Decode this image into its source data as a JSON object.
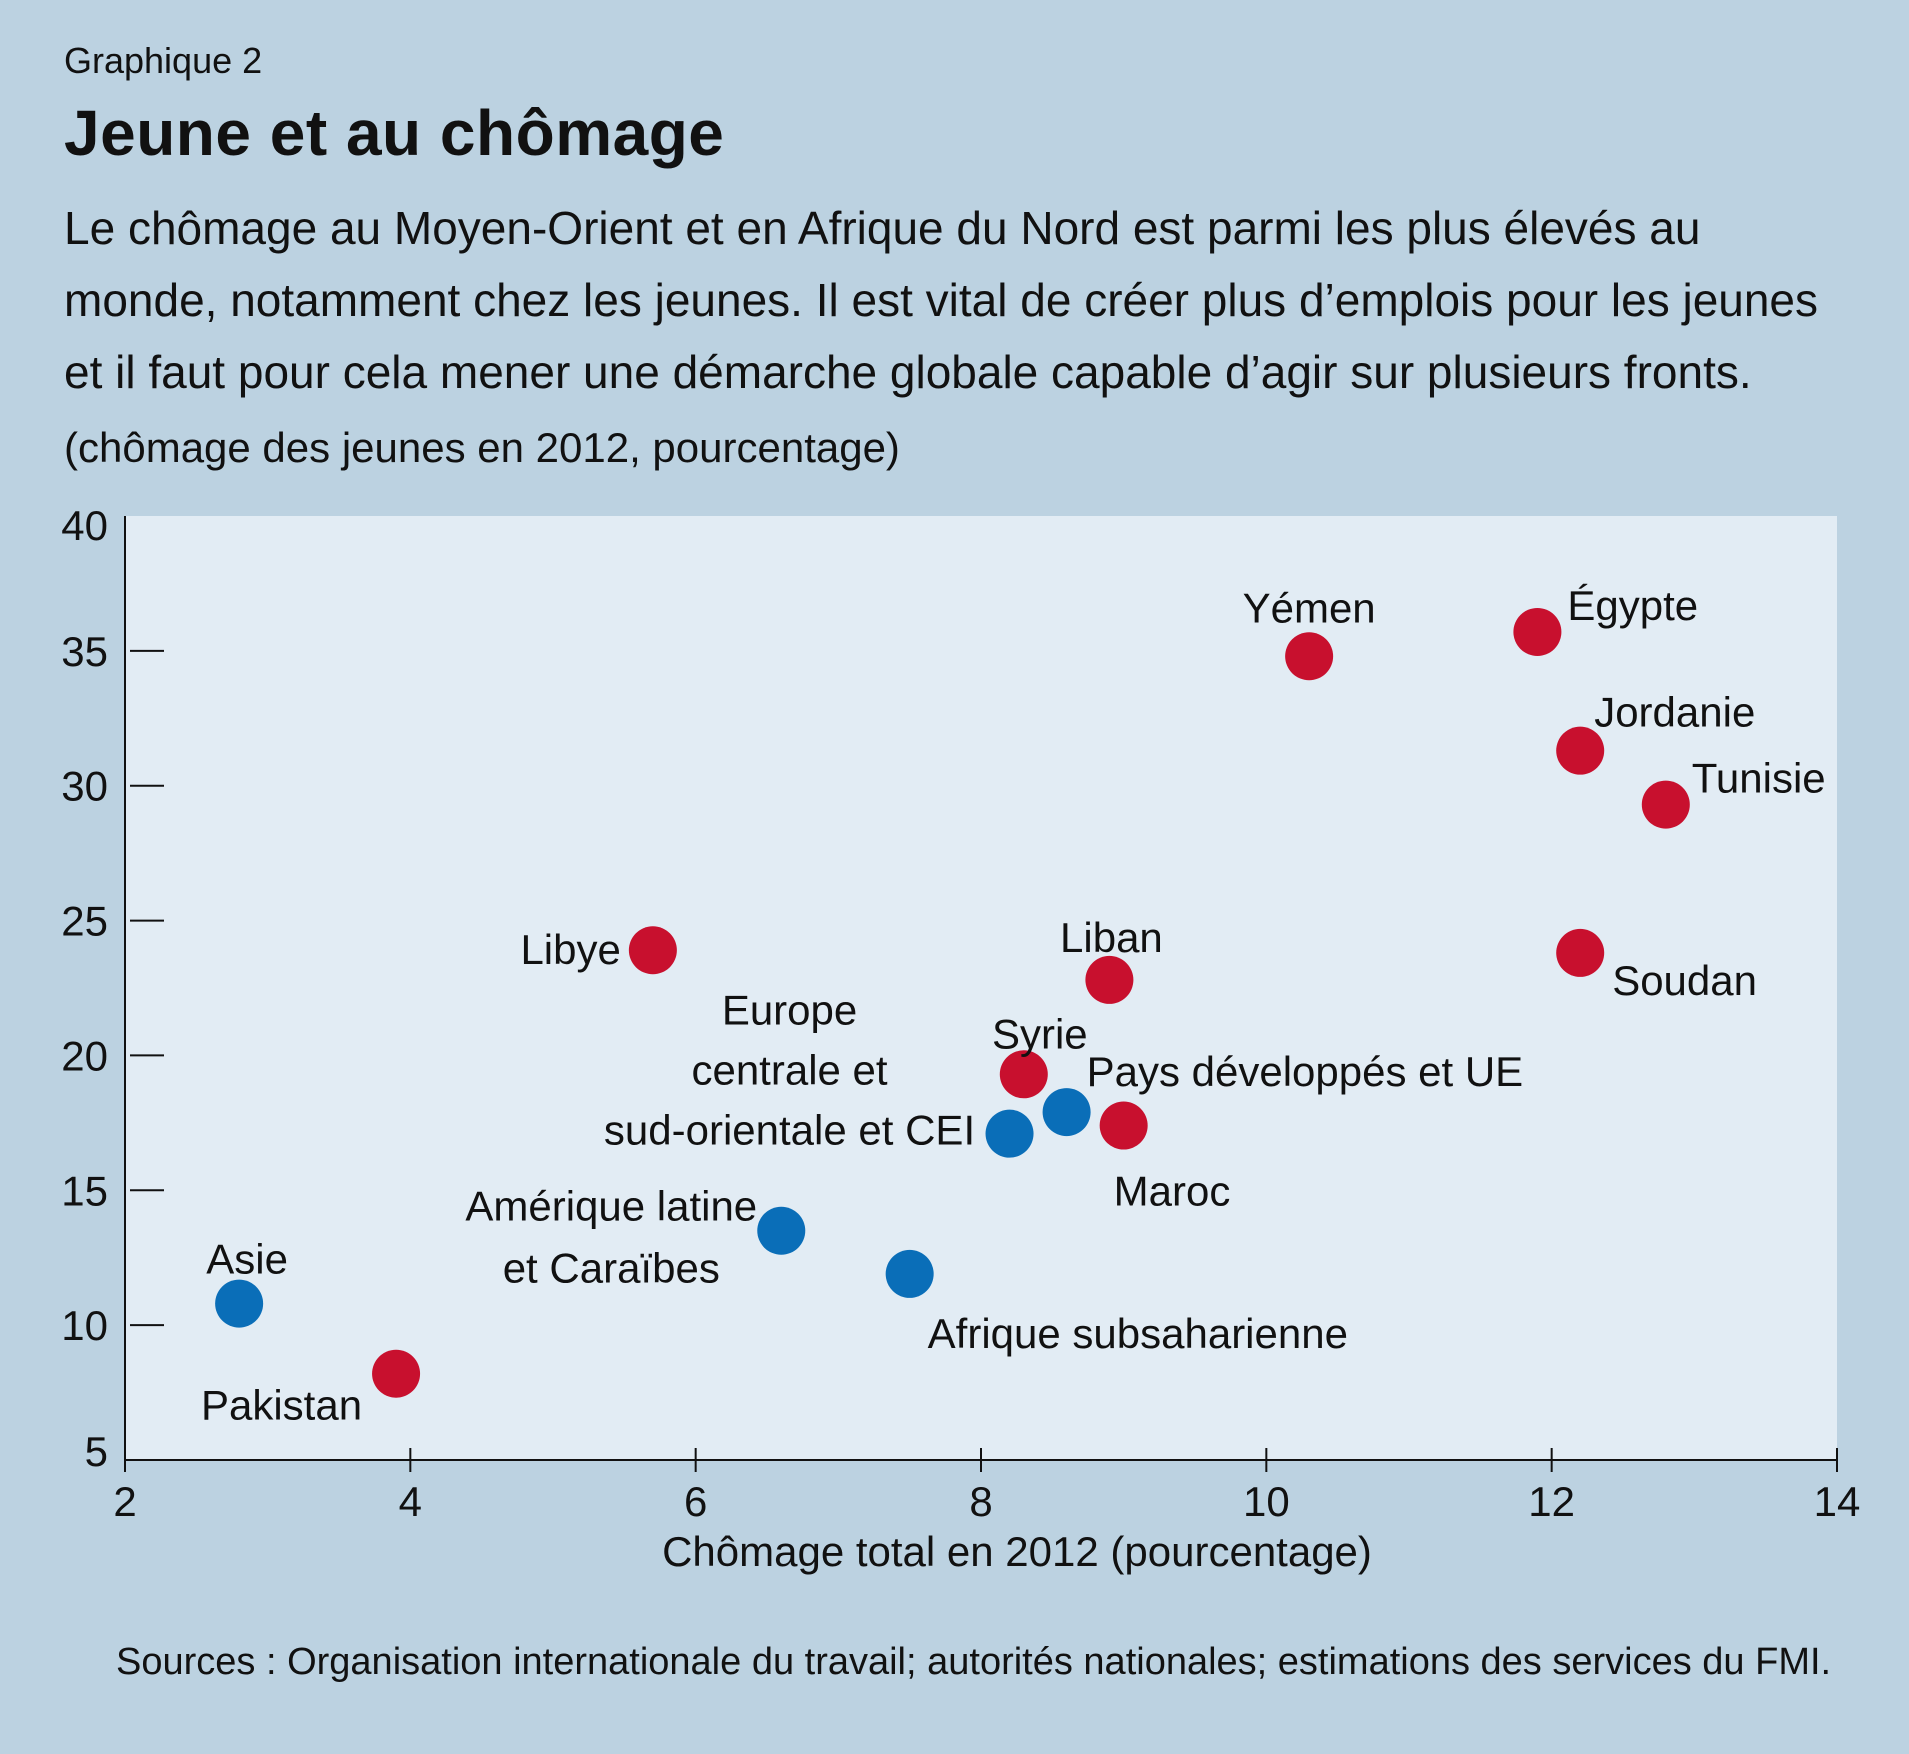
{
  "header": {
    "kicker": "Graphique 2",
    "title": "Jeune et au chômage",
    "subtitle": "Le chômage au Moyen-Orient et en Afrique du Nord est parmi les plus élevés au monde, notamment chez les jeunes. Il est vital de créer plus d’emplois pour les jeunes et il faut pour cela mener une démarche globale capable d’agir sur plusieurs fronts.",
    "unit_note": "(chômage des jeunes en 2012, pourcentage)"
  },
  "footer": {
    "source": "Sources : Organisation internationale du travail; autorités nationales; estimations des services du FMI."
  },
  "colors": {
    "background": "#bcd2e1",
    "plot_area": "#e2ecf4",
    "mena": "#c8102e",
    "other_regions": "#0a6eb8"
  },
  "chart_data": {
    "type": "scatter",
    "title": "Jeune et au chômage",
    "xlabel": "Chômage total en 2012 (pourcentage)",
    "ylabel": "(chômage des jeunes en 2012, pourcentage)",
    "xlim": [
      2,
      14
    ],
    "ylim": [
      5,
      40
    ],
    "x_ticks": [
      "2",
      "4",
      "6",
      "8",
      "10",
      "12",
      "14"
    ],
    "y_ticks": [
      "5",
      "10",
      "15",
      "20",
      "25",
      "30",
      "35",
      "40"
    ],
    "grid": false,
    "series": [
      {
        "group": "mena",
        "color": "#c8102e",
        "points": [
          {
            "label": "Yémen",
            "x": 10.3,
            "y": 34.8
          },
          {
            "label": "Égypte",
            "x": 11.9,
            "y": 35.7
          },
          {
            "label": "Jordanie",
            "x": 12.2,
            "y": 31.3
          },
          {
            "label": "Tunisie",
            "x": 12.8,
            "y": 29.3
          },
          {
            "label": "Soudan",
            "x": 12.2,
            "y": 23.8
          },
          {
            "label": "Libye",
            "x": 5.7,
            "y": 23.9
          },
          {
            "label": "Liban",
            "x": 8.9,
            "y": 22.8
          },
          {
            "label": "Syrie",
            "x": 8.3,
            "y": 19.3
          },
          {
            "label": "Maroc",
            "x": 9.0,
            "y": 17.4
          },
          {
            "label": "Pakistan",
            "x": 3.9,
            "y": 8.2
          }
        ]
      },
      {
        "group": "other_regions",
        "color": "#0a6eb8",
        "points": [
          {
            "label": "Pays développés et UE",
            "x": 8.6,
            "y": 17.9
          },
          {
            "label": "Europe centrale et sud-orientale et CEI",
            "x": 8.2,
            "y": 17.1
          },
          {
            "label": "Amérique latine et Caraïbes",
            "x": 6.6,
            "y": 13.5
          },
          {
            "label": "Afrique subsaharienne",
            "x": 7.5,
            "y": 11.9
          },
          {
            "label": "Asie",
            "x": 2.8,
            "y": 10.8
          }
        ]
      }
    ]
  }
}
